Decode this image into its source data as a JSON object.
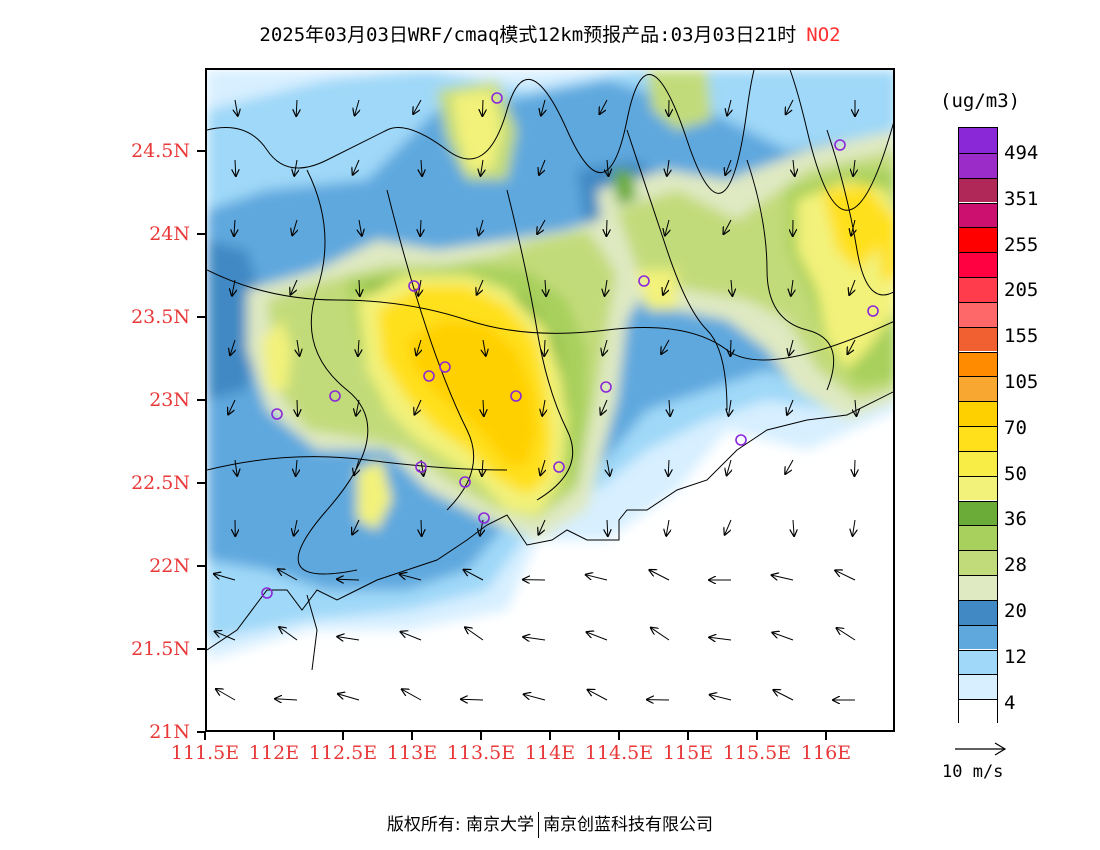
{
  "header": {
    "title": "2025年03月03日WRF/cmaq模式12km预报产品:03月03日21时",
    "species": "NO2"
  },
  "axes": {
    "lat_labels": [
      "24.5N",
      "24N",
      "23.5N",
      "23N",
      "22.5N",
      "22N",
      "21.5N",
      "21N"
    ],
    "lat_values": [
      24.5,
      24.0,
      23.5,
      23.0,
      22.5,
      22.0,
      21.5,
      21.0
    ],
    "lon_labels": [
      "111.5E",
      "112E",
      "112.5E",
      "113E",
      "113.5E",
      "114E",
      "114.5E",
      "115E",
      "115.5E",
      "116E"
    ],
    "lon_values": [
      111.5,
      112.0,
      112.5,
      113.0,
      113.5,
      114.0,
      114.5,
      115.0,
      115.5,
      116.0
    ],
    "lat_range": [
      21.0,
      25.0
    ],
    "lon_range": [
      111.5,
      116.5
    ],
    "label_color": "#e83838"
  },
  "legend": {
    "unit": "(ug/m3)",
    "labels": [
      "494",
      "351",
      "255",
      "205",
      "155",
      "105",
      "70",
      "50",
      "36",
      "28",
      "20",
      "12",
      "4"
    ],
    "colors": [
      "#ffffff",
      "#d7efff",
      "#9fd8f8",
      "#5ea8de",
      "#4189c4",
      "#dfe9c2",
      "#c2db7a",
      "#a8d05c",
      "#6bab38",
      "#f2f27a",
      "#f8ec46",
      "#ffe01a",
      "#ffd000",
      "#f8a830",
      "#ff8c00",
      "#f06030",
      "#ff6868",
      "#ff3c4c",
      "#ff0040",
      "#ff0000",
      "#cc1070",
      "#b02858",
      "#9b2cc8",
      "#8a28d8"
    ],
    "wind_reference": "10 m/s"
  },
  "map": {
    "field": "NO2 concentration",
    "stations": [
      "station-1",
      "station-2",
      "station-3",
      "station-4",
      "station-5",
      "station-6",
      "station-7",
      "station-8",
      "station-9",
      "station-10",
      "station-11",
      "station-12",
      "station-13",
      "station-14",
      "station-15",
      "station-16",
      "station-17"
    ],
    "station_color": "#8a28d8"
  },
  "footer": {
    "copyright": "版权所有: 南京大学",
    "company": "南京创蓝科技有限公司"
  }
}
